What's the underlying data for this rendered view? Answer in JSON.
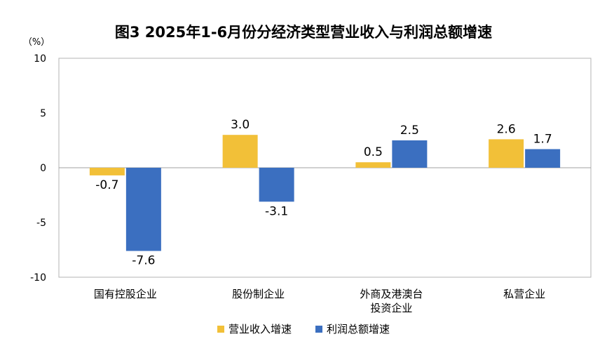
{
  "chart_data": {
    "type": "bar",
    "title": "图3 2025年1-6月份分经济类型营业收入与利润总额增速",
    "ylabel": "（%）",
    "ylim": [
      -10,
      10
    ],
    "yticks": [
      "10",
      "5",
      "0",
      "-5",
      "-10"
    ],
    "categories": [
      [
        "国有控股企业"
      ],
      [
        "股份制企业"
      ],
      [
        "外商及港澳台",
        "投资企业"
      ],
      [
        "私营企业"
      ]
    ],
    "series": [
      {
        "name": "营业收入增速",
        "color": "#f2c038",
        "values": [
          -0.7,
          3.0,
          0.5,
          2.6
        ],
        "labels": [
          "-0.7",
          "3.0",
          "0.5",
          "2.6"
        ]
      },
      {
        "name": "利润总额增速",
        "color": "#3b6fc0",
        "values": [
          -7.6,
          -3.1,
          2.5,
          1.7
        ],
        "labels": [
          "-7.6",
          "-3.1",
          "2.5",
          "1.7"
        ]
      }
    ],
    "legend_position": "bottom",
    "grid": false
  }
}
